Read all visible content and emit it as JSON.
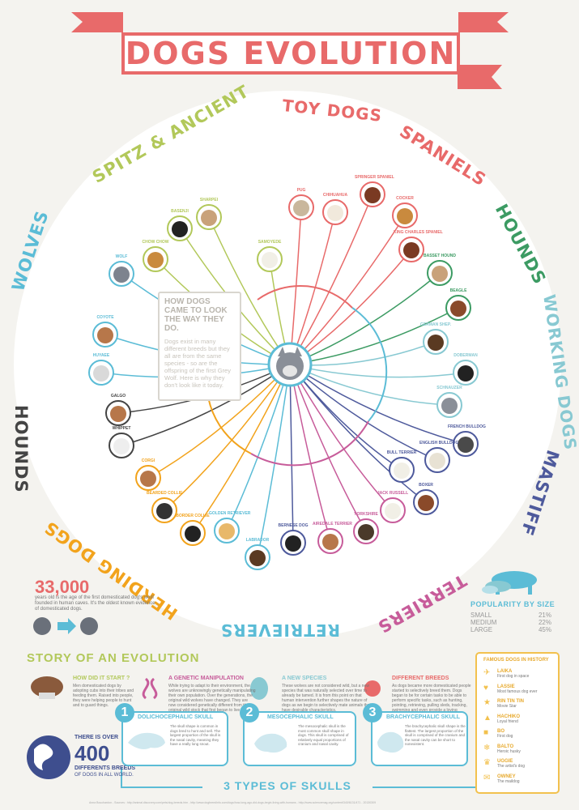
{
  "title": "DOGS EVOLUTION",
  "intro": {
    "title": "HOW DOGS CAME TO LOOK THE WAY THEY DO.",
    "text": "Dogs exist in many different breeds but they all are from the same species - so are the offspring of the first Grey Wolf. Here is why they don't look like it today."
  },
  "groups": {
    "wolves": "WOLVES",
    "spitz": "SPITZ & ANCIENT",
    "toy": "TOY DOGS",
    "spaniels": "SPANIELS",
    "hounds_right": "HOUNDS",
    "working": "WORKING DOGS",
    "mastiff": "MASTIFF",
    "terriers": "TERRIERS",
    "retrievers": "RETRIEVERS",
    "herding": "HERDING DOGS",
    "hounds_left": "HOUNDS"
  },
  "dogs": [
    {
      "name": "WOLF"
    },
    {
      "name": "COYOTE"
    },
    {
      "name": "HUYAEE"
    },
    {
      "name": "CHOW CHOW"
    },
    {
      "name": "BASENJI"
    },
    {
      "name": "SHARPEI"
    },
    {
      "name": "SAMOYEDE"
    },
    {
      "name": "PUG"
    },
    {
      "name": "CHIHUAHUA"
    },
    {
      "name": "SPRINGER SPANIEL"
    },
    {
      "name": "COCKER"
    },
    {
      "name": "KING CHARLES SPANIEL"
    },
    {
      "name": "BASSET HOUND"
    },
    {
      "name": "BEAGLE"
    },
    {
      "name": "GERMAN SHEP."
    },
    {
      "name": "DOBERMAN"
    },
    {
      "name": "SCHNAUZER"
    },
    {
      "name": "FRENCH BULLDOG"
    },
    {
      "name": "ENGLISH BULLDOG"
    },
    {
      "name": "BULL TERRIER"
    },
    {
      "name": "BOXER"
    },
    {
      "name": "JACK RUSSELL"
    },
    {
      "name": "YORKSHIRE"
    },
    {
      "name": "AIREDALE TERRIER"
    },
    {
      "name": "BERNESE DOG"
    },
    {
      "name": "LABRADOR"
    },
    {
      "name": "GOLDEN RETRIEVER"
    },
    {
      "name": "BORDER COLLIE"
    },
    {
      "name": "BEARDED COLLIE"
    },
    {
      "name": "CORGI"
    },
    {
      "name": "WHIPPET"
    },
    {
      "name": "GALGO"
    }
  ],
  "stats": {
    "big": "33,000",
    "small": "years old is the age of the first domesticated dog's skull founded in human caves. It's the oldest known evidence of domesticated dogs."
  },
  "popularity": {
    "title": "POPULARITY BY SIZE",
    "rows": [
      {
        "label": "SMALL",
        "value": "21%"
      },
      {
        "label": "MEDIUM",
        "value": "22%"
      },
      {
        "label": "LARGE",
        "value": "45%"
      }
    ]
  },
  "story": {
    "title": "STORY OF AN EVOLUTION",
    "cards": [
      {
        "title": "HOW DID IT START ?",
        "text": "Men domesticated dogs by adopting cubs into their tribes and feeding them. Raised into people, they were helping people to hunt and to guard things."
      },
      {
        "title": "A GENETIC MANIPULATION",
        "text": "While trying to adapt to their environment, the wolves are unknowingly genetically manipulating their own population. Over the generations, the original wild wolves have changed. They are now considered genetically different from the original wild stock that first began to live with the humans."
      },
      {
        "title": "A NEW SPECIES",
        "text": "These wolves are not considered wild, but a new species that was naturally selected over time to already be tamed. It is from this point on that human intervention further shapes the nature of dogs as we begin to selectively mate animals that have desirable characteristics."
      },
      {
        "title": "DIFFERENT BREEDS",
        "text": "As dogs became more domesticated people started to selectively breed them. Dogs began to be for certain tasks to be able to perform specific tasks, such as hunting, pointing, retrieving, pulling sleds, tracking, swimming and even provide a loving companionship."
      }
    ]
  },
  "famous": {
    "title": "FAMOUS DOGS IN HISTORY",
    "items": [
      {
        "name": "LAIKA",
        "desc": "First dog in space"
      },
      {
        "name": "LASSIE",
        "desc": "Most famous dog ever"
      },
      {
        "name": "RIN TIN TIN",
        "desc": "Movie Star"
      },
      {
        "name": "HACHIKO",
        "desc": "Loyal friend"
      },
      {
        "name": "BO",
        "desc": "First dog"
      },
      {
        "name": "BALTO",
        "desc": "Heroic husky"
      },
      {
        "name": "UGGIE",
        "desc": "The artist's dog"
      },
      {
        "name": "OWNEY",
        "desc": "The maildog"
      }
    ]
  },
  "breeds_count": {
    "prefix": "THERE IS OVER",
    "number": "400",
    "label": "DIFFERENTS BREEDS",
    "suffix": "OF DOGS IN ALL WORLD."
  },
  "skulls": {
    "title": "3 TYPES OF SKULLS",
    "items": [
      {
        "num": "1",
        "title": "DOLICHOCEPHALIC SKULL",
        "text": "The skull shape is common in dogs bred to hunt and sell. The largest proportion of the skull is the nasal cavity, meaning they have a really long snout."
      },
      {
        "num": "2",
        "title": "MESOCEPHALIC SKULL",
        "text": "The mesocephalic skull is the most common skull shape in dogs. This skull is comprised of relatively equal proportions of cranium and nasal cavity."
      },
      {
        "num": "3",
        "title": "BRACHYCEPHALIC SKULL",
        "text": "The brachycephalic skull shape is the flattest. The largest proportion of the skull is comprised of the cranium and the nasal cavity can be short to nonexistent."
      }
    ]
  },
  "credits": "Anna Bouchardon - Sources : http://animal.discovery.com/pets/dog-breeds.htm - http://www.dogbreedinfo.com/dogs/how-long-ago-did-dogs-begin-living-with-humans - http://www.sciencemag.org/content/340/6131/471 - 20130309",
  "colors": {
    "title": "#e86a6a",
    "wolves": "#5bbcd6",
    "spitz": "#b2c85a",
    "toy": "#e86a6a",
    "spaniels": "#e86a6a",
    "hounds": "#3c9b63",
    "working": "#88c9d2",
    "mastiff": "#4e5a9c",
    "terriers": "#c75c9a",
    "retrievers": "#5bbcd6",
    "herding": "#f2a31c",
    "hounds_left": "#444444"
  }
}
